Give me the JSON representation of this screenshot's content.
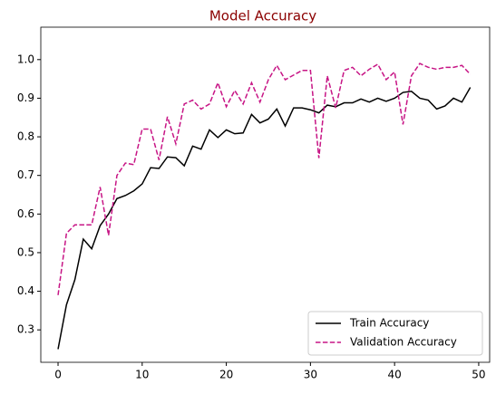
{
  "chart_data": {
    "type": "line",
    "title": "Model Accuracy",
    "x": [
      0,
      1,
      2,
      3,
      4,
      5,
      6,
      7,
      8,
      9,
      10,
      11,
      12,
      13,
      14,
      15,
      16,
      17,
      18,
      19,
      20,
      21,
      22,
      23,
      24,
      25,
      26,
      27,
      28,
      29,
      30,
      31,
      32,
      33,
      34,
      35,
      36,
      37,
      38,
      39,
      40,
      41,
      42,
      43,
      44,
      45,
      46,
      47,
      48,
      49
    ],
    "series": [
      {
        "name": "Train Accuracy",
        "color": "#000000",
        "dash": "solid",
        "values": [
          0.25,
          0.365,
          0.43,
          0.535,
          0.51,
          0.57,
          0.6,
          0.64,
          0.648,
          0.66,
          0.678,
          0.72,
          0.718,
          0.748,
          0.746,
          0.725,
          0.776,
          0.768,
          0.818,
          0.798,
          0.818,
          0.808,
          0.81,
          0.858,
          0.836,
          0.846,
          0.872,
          0.828,
          0.875,
          0.875,
          0.87,
          0.862,
          0.882,
          0.878,
          0.888,
          0.888,
          0.898,
          0.89,
          0.9,
          0.892,
          0.9,
          0.915,
          0.918,
          0.9,
          0.895,
          0.872,
          0.88,
          0.9,
          0.89,
          0.928
        ]
      },
      {
        "name": "Validation Accuracy",
        "color": "#c71585",
        "dash": "dashed",
        "values": [
          0.39,
          0.55,
          0.572,
          0.572,
          0.572,
          0.67,
          0.545,
          0.7,
          0.732,
          0.728,
          0.82,
          0.82,
          0.74,
          0.852,
          0.782,
          0.885,
          0.895,
          0.872,
          0.885,
          0.94,
          0.878,
          0.92,
          0.885,
          0.94,
          0.89,
          0.948,
          0.985,
          0.948,
          0.96,
          0.972,
          0.972,
          0.745,
          0.958,
          0.875,
          0.972,
          0.98,
          0.958,
          0.975,
          0.988,
          0.948,
          0.968,
          0.832,
          0.958,
          0.99,
          0.98,
          0.975,
          0.98,
          0.98,
          0.985,
          0.962
        ]
      }
    ],
    "xlim": [
      -2.05,
      51.3
    ],
    "ylim": [
      0.216,
      1.084
    ],
    "xticks": [
      0,
      10,
      20,
      30,
      40,
      50
    ],
    "yticks": [
      0.3,
      0.4,
      0.5,
      0.6,
      0.7,
      0.8,
      0.9,
      {
        "value": 1,
        "label": "1.0"
      }
    ],
    "title_color": "#8b0000",
    "legend": "lower right"
  }
}
